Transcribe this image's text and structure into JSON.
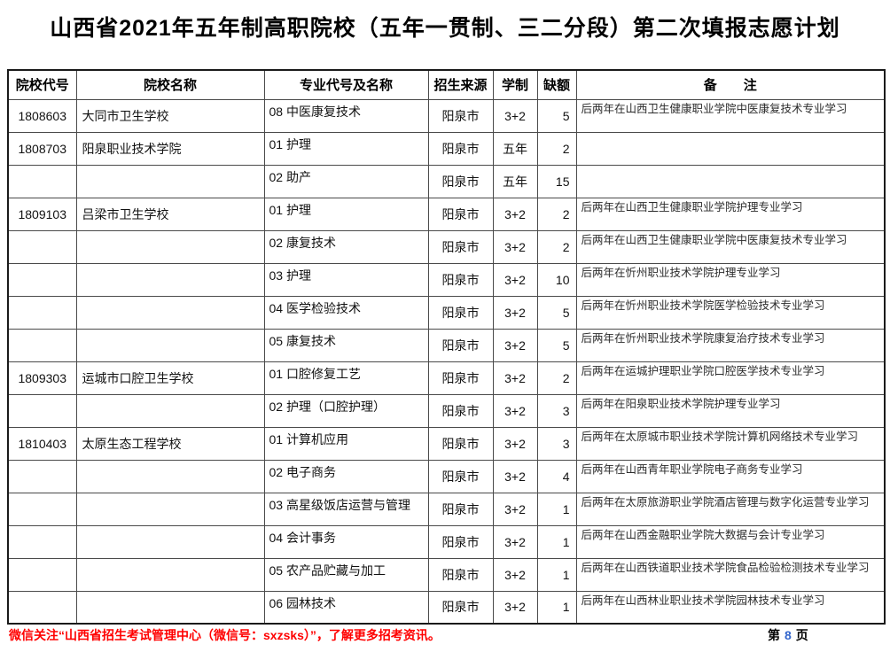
{
  "title": "山西省2021年五年制高职院校（五年一贯制、三二分段）第二次填报志愿计划",
  "table": {
    "headers": [
      "院校代号",
      "院校名称",
      "专业代号及名称",
      "招生来源",
      "学制",
      "缺额",
      "备　　注"
    ],
    "column_keys": [
      "code",
      "school",
      "major",
      "source",
      "duration",
      "vacancy",
      "remark"
    ],
    "rows": [
      {
        "code": "1808603",
        "school": "大同市卫生学校",
        "major": "08 中医康复技术",
        "source": "阳泉市",
        "duration": "3+2",
        "vacancy": "5",
        "remark": "后两年在山西卫生健康职业学院中医康复技术专业学习"
      },
      {
        "code": "1808703",
        "school": "阳泉职业技术学院",
        "major": "01 护理",
        "source": "阳泉市",
        "duration": "五年",
        "vacancy": "2",
        "remark": ""
      },
      {
        "code": "",
        "school": "",
        "major": "02 助产",
        "source": "阳泉市",
        "duration": "五年",
        "vacancy": "15",
        "remark": ""
      },
      {
        "code": "1809103",
        "school": "吕梁市卫生学校",
        "major": "01 护理",
        "source": "阳泉市",
        "duration": "3+2",
        "vacancy": "2",
        "remark": "后两年在山西卫生健康职业学院护理专业学习"
      },
      {
        "code": "",
        "school": "",
        "major": "02 康复技术",
        "source": "阳泉市",
        "duration": "3+2",
        "vacancy": "2",
        "remark": "后两年在山西卫生健康职业学院中医康复技术专业学习"
      },
      {
        "code": "",
        "school": "",
        "major": "03 护理",
        "source": "阳泉市",
        "duration": "3+2",
        "vacancy": "10",
        "remark": "后两年在忻州职业技术学院护理专业学习"
      },
      {
        "code": "",
        "school": "",
        "major": "04 医学检验技术",
        "source": "阳泉市",
        "duration": "3+2",
        "vacancy": "5",
        "remark": "后两年在忻州职业技术学院医学检验技术专业学习"
      },
      {
        "code": "",
        "school": "",
        "major": "05 康复技术",
        "source": "阳泉市",
        "duration": "3+2",
        "vacancy": "5",
        "remark": "后两年在忻州职业技术学院康复治疗技术专业学习"
      },
      {
        "code": "1809303",
        "school": "运城市口腔卫生学校",
        "major": "01 口腔修复工艺",
        "source": "阳泉市",
        "duration": "3+2",
        "vacancy": "2",
        "remark": "后两年在运城护理职业学院口腔医学技术专业学习"
      },
      {
        "code": "",
        "school": "",
        "major": "02 护理（口腔护理）",
        "source": "阳泉市",
        "duration": "3+2",
        "vacancy": "3",
        "remark": "后两年在阳泉职业技术学院护理专业学习"
      },
      {
        "code": "1810403",
        "school": "太原生态工程学校",
        "major": "01 计算机应用",
        "source": "阳泉市",
        "duration": "3+2",
        "vacancy": "3",
        "remark": "后两年在太原城市职业技术学院计算机网络技术专业学习"
      },
      {
        "code": "",
        "school": "",
        "major": "02 电子商务",
        "source": "阳泉市",
        "duration": "3+2",
        "vacancy": "4",
        "remark": "后两年在山西青年职业学院电子商务专业学习"
      },
      {
        "code": "",
        "school": "",
        "major": "03 高星级饭店运营与管理",
        "source": "阳泉市",
        "duration": "3+2",
        "vacancy": "1",
        "remark": "后两年在太原旅游职业学院酒店管理与数字化运营专业学习"
      },
      {
        "code": "",
        "school": "",
        "major": "04 会计事务",
        "source": "阳泉市",
        "duration": "3+2",
        "vacancy": "1",
        "remark": "后两年在山西金融职业学院大数据与会计专业学习"
      },
      {
        "code": "",
        "school": "",
        "major": "05 农产品贮藏与加工",
        "source": "阳泉市",
        "duration": "3+2",
        "vacancy": "1",
        "remark": "后两年在山西铁道职业技术学院食品检验检测技术专业学习"
      },
      {
        "code": "",
        "school": "",
        "major": "06 园林技术",
        "source": "阳泉市",
        "duration": "3+2",
        "vacancy": "1",
        "remark": "后两年在山西林业职业技术学院园林技术专业学习"
      }
    ]
  },
  "footer": {
    "notice": "微信关注“山西省招生考试管理中心（微信号：sxzsks）”，了解更多招考资讯。",
    "notice_color": "#ff0000",
    "page_prefix": "第",
    "page_number": "8",
    "page_suffix": "页",
    "page_number_color": "#3366cc"
  }
}
